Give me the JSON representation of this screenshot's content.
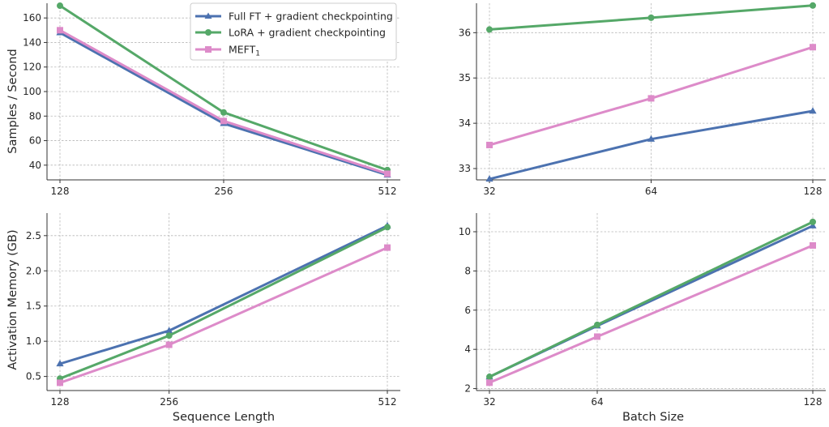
{
  "colors": {
    "full_ft": "#4c72b0",
    "lora": "#55a868",
    "meft": "#dd8bc9"
  },
  "legend": [
    {
      "label": "Full FT + gradient checkpointing",
      "series": "full_ft",
      "marker": "triangle"
    },
    {
      "label": "LoRA + gradient checkpointing",
      "series": "lora",
      "marker": "circle"
    },
    {
      "label": "MEFT",
      "sub": "1",
      "series": "meft",
      "marker": "square"
    }
  ],
  "axis_titles": {
    "ylabel_top": "Samples / Second",
    "ylabel_bottom": "Activation Memory (GB)",
    "xlabel_left": "Sequence Length",
    "xlabel_right": "Batch Size"
  },
  "chart_data": [
    {
      "id": "throughput-vs-seq-len",
      "type": "line",
      "x": [
        128,
        256,
        512
      ],
      "xticks": [
        "128",
        "256",
        "512"
      ],
      "xlim": [
        128,
        512
      ],
      "ylim": [
        28,
        172
      ],
      "yticks": [
        40,
        60,
        80,
        100,
        120,
        140,
        160
      ],
      "ylabel": "Samples / Second",
      "xlabel": "",
      "grid": true,
      "legend": "top-right",
      "series": [
        {
          "name": "Full FT + gradient checkpointing",
          "key": "full_ft",
          "marker": "triangle",
          "values": [
            148,
            74,
            32
          ]
        },
        {
          "name": "LoRA + gradient checkpointing",
          "key": "lora",
          "marker": "circle",
          "values": [
            170,
            83,
            36
          ]
        },
        {
          "name": "MEFT1",
          "key": "meft",
          "marker": "square",
          "values": [
            150,
            76,
            33
          ]
        }
      ]
    },
    {
      "id": "throughput-vs-batch-size",
      "type": "line",
      "x": [
        32,
        64,
        128
      ],
      "xticks": [
        "32",
        "64",
        "128"
      ],
      "xlim": [
        32,
        128
      ],
      "ylim": [
        32.75,
        36.65
      ],
      "yticks": [
        33,
        34,
        35,
        36
      ],
      "ylabel": "",
      "xlabel": "",
      "grid": true,
      "series": [
        {
          "name": "Full FT + gradient checkpointing",
          "key": "full_ft",
          "marker": "triangle",
          "values": [
            32.77,
            33.65,
            34.27
          ]
        },
        {
          "name": "LoRA + gradient checkpointing",
          "key": "lora",
          "marker": "circle",
          "values": [
            36.07,
            36.33,
            36.6
          ]
        },
        {
          "name": "MEFT1",
          "key": "meft",
          "marker": "square",
          "values": [
            33.52,
            34.55,
            35.68
          ]
        }
      ]
    },
    {
      "id": "memory-vs-seq-len",
      "type": "line",
      "x": [
        128,
        256,
        512
      ],
      "xticks": [
        "128",
        "256",
        "512"
      ],
      "xlim": [
        128,
        512
      ],
      "ylim": [
        0.3,
        2.82
      ],
      "yticks": [
        0.5,
        1.0,
        1.5,
        2.0,
        2.5
      ],
      "ytick_labels": [
        "0.5",
        "1.0",
        "1.5",
        "2.0",
        "2.5"
      ],
      "ylabel": "Activation Memory (GB)",
      "xlabel": "Sequence Length",
      "grid": true,
      "series": [
        {
          "name": "Full FT + gradient checkpointing",
          "key": "full_ft",
          "marker": "triangle",
          "values": [
            0.68,
            1.15,
            2.64
          ]
        },
        {
          "name": "LoRA + gradient checkpointing",
          "key": "lora",
          "marker": "circle",
          "values": [
            0.47,
            1.08,
            2.62
          ]
        },
        {
          "name": "MEFT1",
          "key": "meft",
          "marker": "square",
          "values": [
            0.41,
            0.95,
            2.33
          ]
        }
      ]
    },
    {
      "id": "memory-vs-batch-size",
      "type": "line",
      "x": [
        32,
        64,
        128
      ],
      "xticks": [
        "32",
        "64",
        "128"
      ],
      "xlim": [
        32,
        128
      ],
      "ylim": [
        1.9,
        10.95
      ],
      "yticks": [
        2,
        4,
        6,
        8,
        10
      ],
      "ylabel": "",
      "xlabel": "Batch Size",
      "grid": true,
      "series": [
        {
          "name": "Full FT + gradient checkpointing",
          "key": "full_ft",
          "marker": "triangle",
          "values": [
            2.6,
            5.2,
            10.3
          ]
        },
        {
          "name": "LoRA + gradient checkpointing",
          "key": "lora",
          "marker": "circle",
          "values": [
            2.6,
            5.25,
            10.5
          ]
        },
        {
          "name": "MEFT1",
          "key": "meft",
          "marker": "square",
          "values": [
            2.3,
            4.65,
            9.3
          ]
        }
      ]
    }
  ]
}
